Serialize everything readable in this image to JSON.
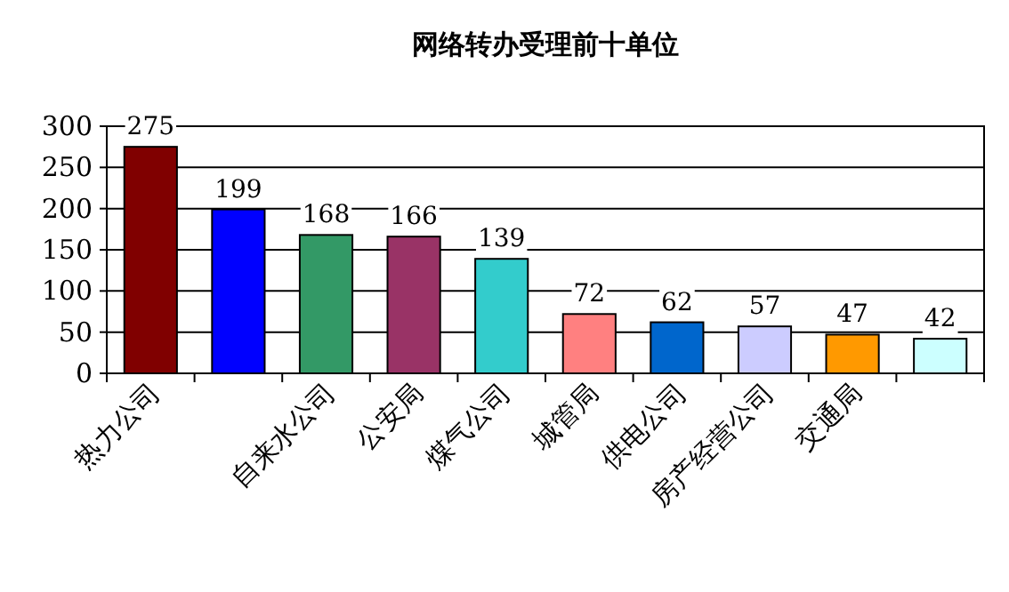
{
  "chart_data": {
    "type": "bar",
    "title": "网络转办受理前十单位",
    "categories": [
      "热力公司",
      null,
      "自来水公司",
      "公安局",
      "煤气公司",
      "城管局",
      "供电公司",
      "房产经营公司",
      "交通局",
      null
    ],
    "values": [
      275,
      199,
      168,
      166,
      139,
      72,
      62,
      57,
      47,
      42
    ],
    "colors": [
      "#800000",
      "#0000ff",
      "#339966",
      "#993366",
      "#33cccc",
      "#ff8080",
      "#0066cc",
      "#ccccff",
      "#ff9900",
      "#ccffff"
    ],
    "ylim": [
      0,
      300
    ],
    "yticks": [
      0,
      50,
      100,
      150,
      200,
      250,
      300
    ],
    "grid": "y",
    "data_labels": true
  }
}
